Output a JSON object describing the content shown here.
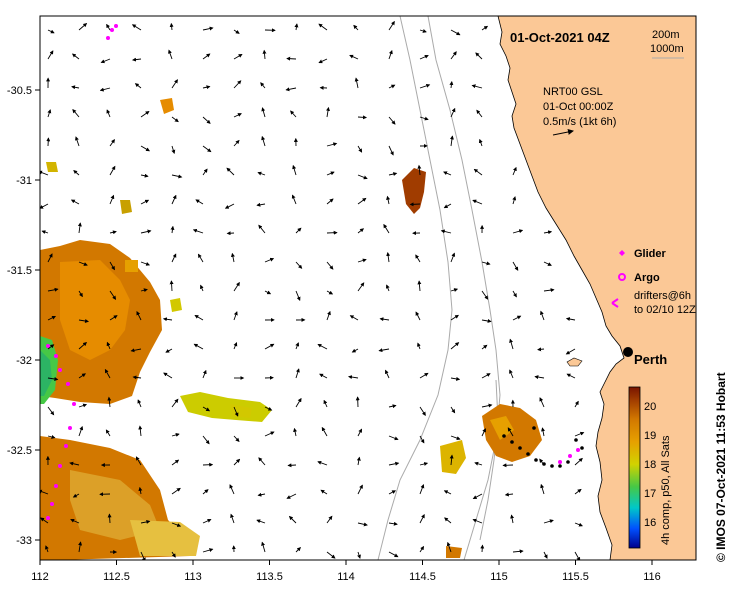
{
  "map": {
    "timestamp": "01-Oct-2021 04Z",
    "contours": [
      "200m",
      "1000m"
    ],
    "current_info": [
      "NRT00 GSL",
      "01-Oct 00:00Z",
      "0.5m/s (1kt 6h)"
    ],
    "legend": {
      "glider": "Glider",
      "argo": "Argo",
      "drifters_line1": "drifters@6h",
      "drifters_line2": "to 02/10 12Z"
    },
    "city": "Perth",
    "colorbar": {
      "ticks": [
        "20",
        "19",
        "18",
        "17",
        "16"
      ],
      "caption": "4h comp, p50, All Sats",
      "colors": [
        "#00008c",
        "#0050ff",
        "#00c8c8",
        "#46c846",
        "#d2d200",
        "#e6a000",
        "#d27800",
        "#a03c00",
        "#781400"
      ]
    },
    "credit": "© IMOS 07-Oct-2021 11:53 Hobart",
    "x_ticks": [
      "112",
      "112.5",
      "113",
      "113.5",
      "114",
      "114.5",
      "115",
      "115.5",
      "116"
    ],
    "y_ticks": [
      "-30.5",
      "-31",
      "-31.5",
      "-32",
      "-32.5",
      "-33"
    ],
    "colors": {
      "land": "#fbc896",
      "glider": "#ff00ff",
      "track": "#000000",
      "isobath": "#aaaaaa"
    }
  }
}
